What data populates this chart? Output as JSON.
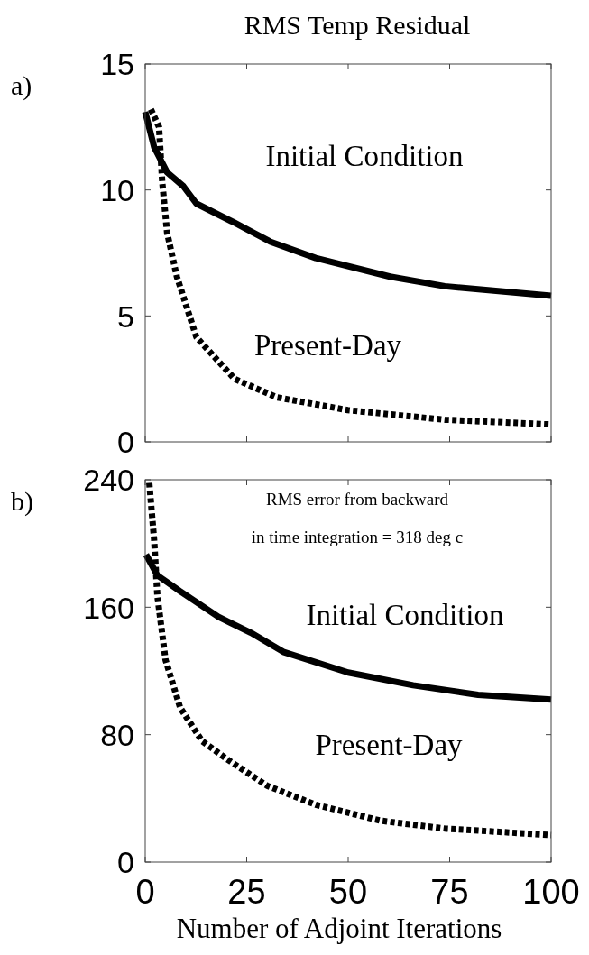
{
  "chart_data": [
    {
      "type": "line",
      "title": "RMS Temp Residual",
      "annotations": [
        "a)"
      ],
      "xlim": [
        0,
        100
      ],
      "xticks": [
        0,
        25,
        50,
        75,
        100
      ],
      "ylim": [
        0,
        15
      ],
      "yticks": [
        0,
        5,
        10,
        15
      ],
      "tick_labels": "y",
      "grid": false,
      "series": [
        {
          "name": "Initial Condition",
          "color": "#000000",
          "line_style": "solid",
          "x": [
            0,
            2.2,
            5.4,
            9.4,
            12.6,
            22,
            30.8,
            42,
            60.3,
            73.8,
            100
          ],
          "values": [
            13.1,
            11.7,
            10.7,
            10.15,
            9.46,
            8.7,
            7.95,
            7.3,
            6.56,
            6.18,
            5.8
          ]
        },
        {
          "name": "Present-Day",
          "color": "#000000",
          "line_style": "dashed",
          "x": [
            1.4,
            3.4,
            4.2,
            5.4,
            7.8,
            12.6,
            22,
            32.4,
            49.9,
            73.8,
            100
          ],
          "values": [
            13.2,
            12.5,
            10.3,
            8.3,
            6.56,
            4.16,
            2.5,
            1.77,
            1.26,
            0.88,
            0.69
          ]
        }
      ]
    },
    {
      "type": "line",
      "xlabel": "Number of Adjoint Iterations",
      "annotations": [
        "b)",
        "RMS error from backward\nin time integration = 318 deg c"
      ],
      "xlim": [
        0,
        100
      ],
      "xticks": [
        0,
        25,
        50,
        75,
        100
      ],
      "ylim": [
        0,
        240
      ],
      "yticks": [
        0,
        80,
        160,
        240
      ],
      "grid": false,
      "series": [
        {
          "name": "Initial Condition",
          "color": "#000000",
          "line_style": "solid",
          "x": [
            0.2,
            3,
            8.6,
            18,
            26,
            34,
            50,
            66,
            82,
            100
          ],
          "values": [
            193,
            180,
            170,
            154,
            144,
            132,
            119,
            111,
            105,
            102
          ]
        },
        {
          "name": "Present-Day",
          "color": "#000000",
          "line_style": "dashed",
          "x": [
            1,
            2.2,
            3,
            5,
            8.6,
            14,
            20.5,
            30,
            42,
            58,
            74,
            100
          ],
          "values": [
            238,
            202,
            167,
            127,
            97,
            76,
            64,
            48,
            36,
            26,
            21,
            17
          ]
        }
      ]
    }
  ]
}
